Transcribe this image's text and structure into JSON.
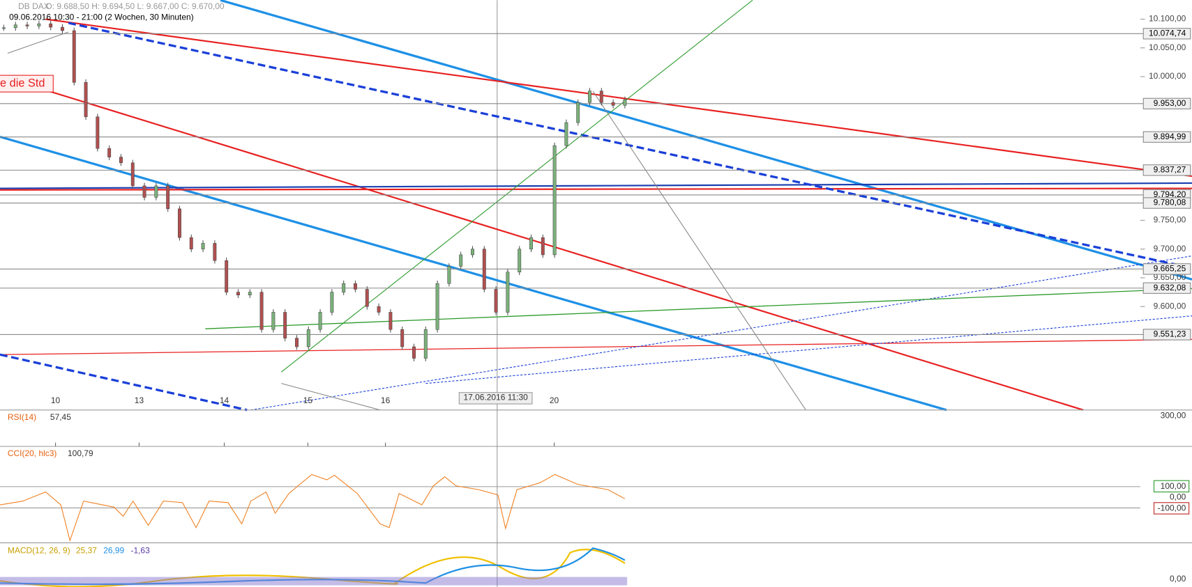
{
  "header": {
    "symbol": "DB DAX",
    "ohlc": "O: 9.688,50  H: 9.694,50  L: 9.667,00  C: 9.670,00",
    "period": "09.06.2016 10:30 - 21:00 (2 Wochen, 30 Minuten)"
  },
  "annotation": "e die Std",
  "price_axis": {
    "ylim": [
      9420,
      10133
    ],
    "ticks": [
      {
        "value": 10100,
        "label": "10.100,00"
      },
      {
        "value": 10050,
        "label": "10.050,00"
      },
      {
        "value": 10000,
        "label": "10.000,00"
      },
      {
        "value": 9750,
        "label": "9.750,00"
      },
      {
        "value": 9700,
        "label": "9.700,00"
      },
      {
        "value": 9650,
        "label": "9.650,00"
      },
      {
        "value": 9600,
        "label": "9.600,00"
      }
    ],
    "levels": [
      {
        "value": 10074.74,
        "label": "10.074,74"
      },
      {
        "value": 9953,
        "label": "9.953,00"
      },
      {
        "value": 9894.99,
        "label": "9.894,99"
      },
      {
        "value": 9837.27,
        "label": "9.837,27"
      },
      {
        "value": 9794.2,
        "label": "9.794,20"
      },
      {
        "value": 9780.08,
        "label": "9.780,08"
      },
      {
        "value": 9665.25,
        "label": "9.665,25"
      },
      {
        "value": 9632.08,
        "label": "9.632,08"
      },
      {
        "value": 9551.23,
        "label": "9.551,23"
      }
    ]
  },
  "closes": [
    10085,
    10090,
    10088,
    10092,
    10086,
    10080,
    9990,
    9930,
    9875,
    9860,
    9850,
    9810,
    9790,
    9810,
    9770,
    9720,
    9700,
    9710,
    9680,
    9625,
    9620,
    9625,
    9560,
    9590,
    9545,
    9530,
    9560,
    9590,
    9625,
    9640,
    9630,
    9600,
    9590,
    9560,
    9530,
    9510,
    9560,
    9640,
    9670,
    9690,
    9700,
    9630,
    9590,
    9660,
    9700,
    9720,
    9690,
    9880,
    9920,
    9955,
    9975,
    9955,
    9950,
    9960
  ],
  "dates": [
    "10",
    "13",
    "14",
    "15",
    "16",
    "20"
  ],
  "crosshair": "17.06.2016 11:30",
  "indicators": [
    {
      "label": "RSI(14)",
      "value": "57,45",
      "scale": [
        "300,00"
      ]
    },
    {
      "label": "CCI(20, hlc3)",
      "value": "100,79",
      "scale": [
        "100,00",
        "0,00",
        "-100,00"
      ]
    },
    {
      "label": "MACD(12, 26, 9)",
      "values": [
        "25,37",
        "26,99",
        "-1,63"
      ],
      "scale": [
        "0,00"
      ]
    }
  ]
}
